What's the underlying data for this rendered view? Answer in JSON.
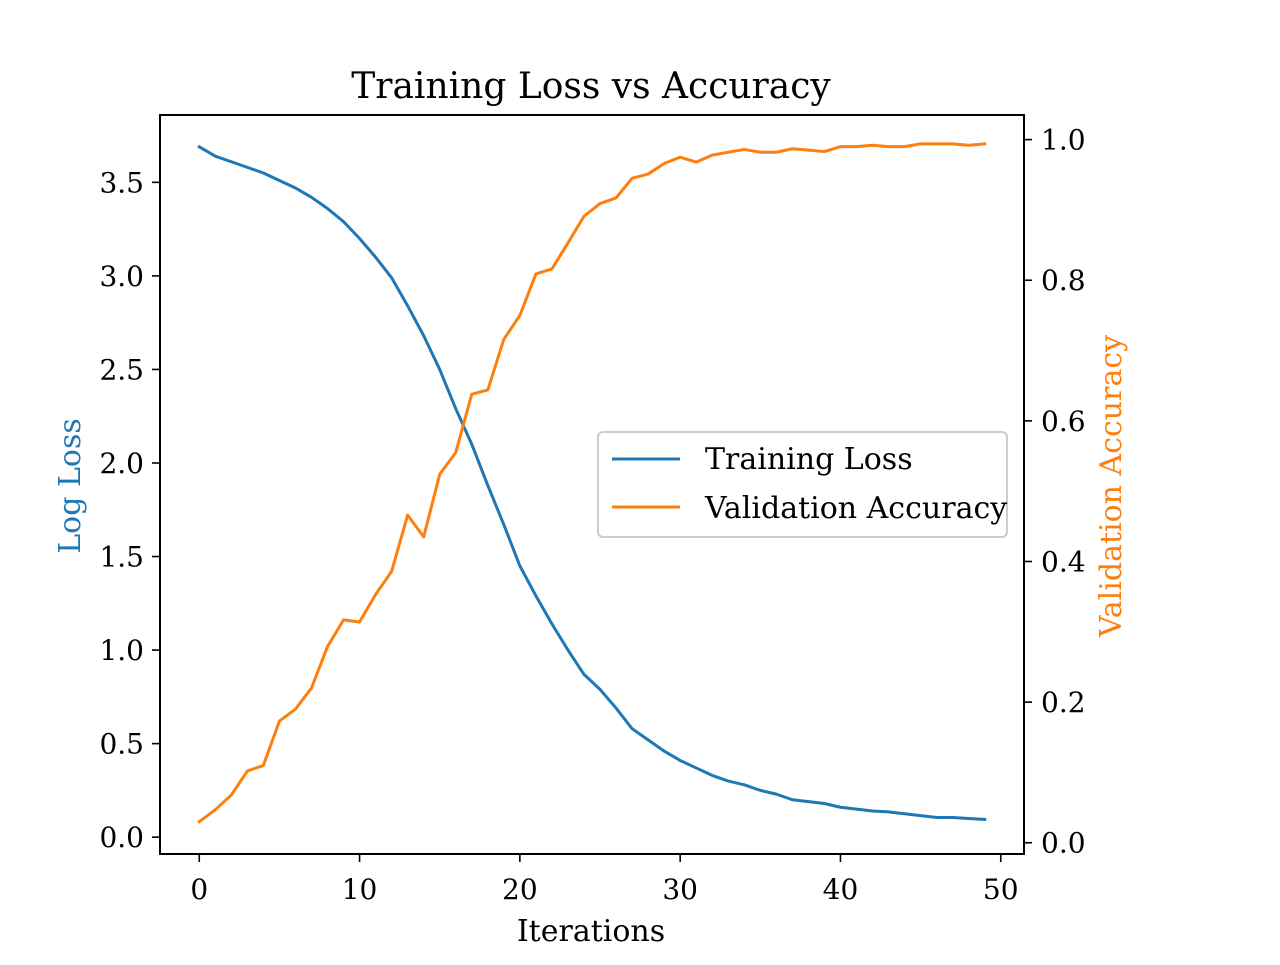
{
  "chart_data": {
    "type": "line",
    "title": "Training Loss vs Accuracy",
    "xlabel": "Iterations",
    "ylabel_left": "Log Loss",
    "ylabel_right": "Validation Accuracy",
    "xlim": [
      -2.45,
      51.45
    ],
    "ylim_left": [
      -0.09,
      3.86
    ],
    "ylim_right": [
      -0.016,
      1.035
    ],
    "x_ticks": [
      0,
      10,
      20,
      30,
      40,
      50
    ],
    "y_ticks_left": [
      0.0,
      0.5,
      1.0,
      1.5,
      2.0,
      2.5,
      3.0,
      3.5
    ],
    "y_ticks_right": [
      0.0,
      0.2,
      0.4,
      0.6,
      0.8,
      1.0
    ],
    "grid": false,
    "legend_position": "center-right",
    "x": [
      0,
      1,
      2,
      3,
      4,
      5,
      6,
      7,
      8,
      9,
      10,
      11,
      12,
      13,
      14,
      15,
      16,
      17,
      18,
      19,
      20,
      21,
      22,
      23,
      24,
      25,
      26,
      27,
      28,
      29,
      30,
      31,
      32,
      33,
      34,
      35,
      36,
      37,
      38,
      39,
      40,
      41,
      42,
      43,
      44,
      45,
      46,
      47,
      48,
      49
    ],
    "series": [
      {
        "name": "Training Loss",
        "axis": "left",
        "color": "#1f77b4",
        "values": [
          3.69,
          3.64,
          3.61,
          3.58,
          3.55,
          3.51,
          3.47,
          3.42,
          3.36,
          3.29,
          3.2,
          3.1,
          2.99,
          2.84,
          2.68,
          2.5,
          2.29,
          2.1,
          1.88,
          1.67,
          1.45,
          1.29,
          1.14,
          1.0,
          0.87,
          0.79,
          0.69,
          0.58,
          0.52,
          0.46,
          0.41,
          0.37,
          0.33,
          0.3,
          0.28,
          0.25,
          0.23,
          0.2,
          0.19,
          0.18,
          0.16,
          0.15,
          0.14,
          0.135,
          0.125,
          0.115,
          0.105,
          0.105,
          0.1,
          0.095
        ]
      },
      {
        "name": "Validation Accuracy",
        "axis": "right",
        "color": "#ff7f0e",
        "values": [
          0.03,
          0.047,
          0.068,
          0.102,
          0.11,
          0.173,
          0.19,
          0.22,
          0.279,
          0.317,
          0.314,
          0.353,
          0.386,
          0.466,
          0.435,
          0.524,
          0.555,
          0.638,
          0.644,
          0.716,
          0.75,
          0.809,
          0.816,
          0.853,
          0.891,
          0.909,
          0.917,
          0.945,
          0.951,
          0.966,
          0.975,
          0.968,
          0.978,
          0.982,
          0.986,
          0.982,
          0.982,
          0.987,
          0.985,
          0.983,
          0.99,
          0.99,
          0.992,
          0.99,
          0.99,
          0.994,
          0.994,
          0.994,
          0.992,
          0.994
        ]
      }
    ]
  }
}
